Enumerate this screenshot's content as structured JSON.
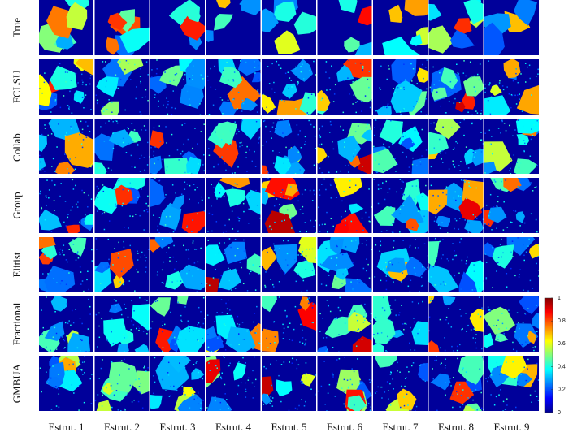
{
  "rows": [
    "True",
    "FCLSU",
    "Collab.",
    "Group",
    "Elitist",
    "Fractional",
    "GMBUA"
  ],
  "columns": [
    "Estrut. 1",
    "Estrut. 2",
    "Estrut. 3",
    "Estrut. 4",
    "Estrut. 5",
    "Estrut. 6",
    "Estrut. 7",
    "Estrut. 8",
    "Estrut. 9"
  ],
  "colorbar": {
    "lim": [
      0,
      1
    ],
    "ticks": [
      0,
      0.2,
      0.4,
      0.6,
      0.8,
      1
    ]
  }
}
